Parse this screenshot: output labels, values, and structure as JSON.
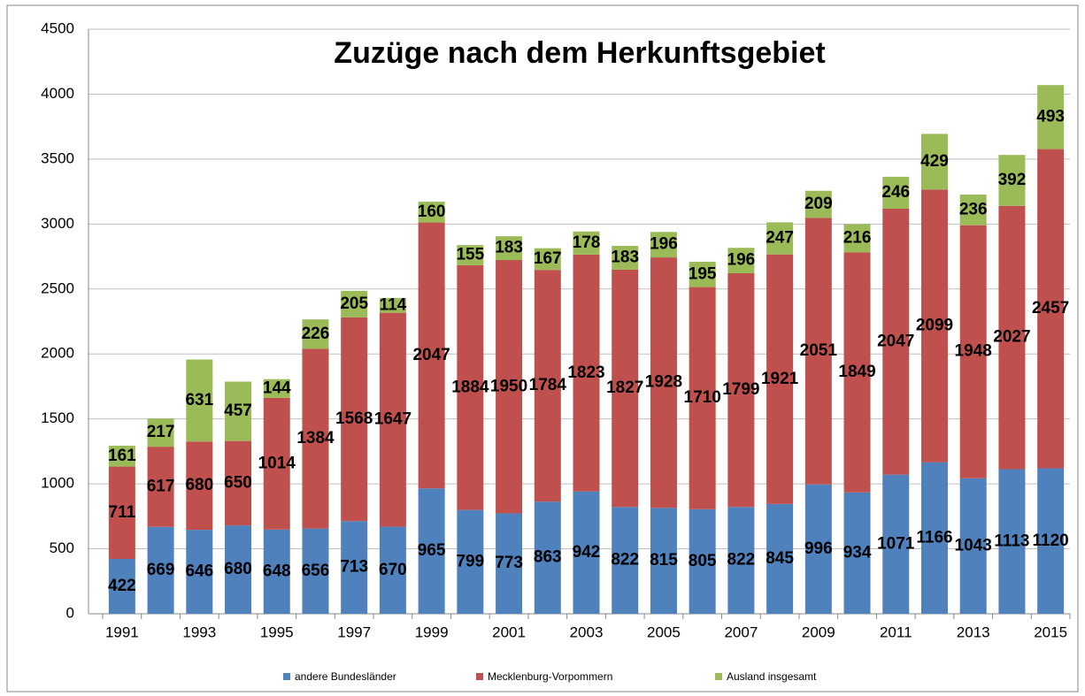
{
  "chart_data": {
    "type": "stacked-bar",
    "title": "Zuzüge nach dem Herkunftsgebiet",
    "categories": [
      "1991",
      null,
      "1993",
      null,
      "1995",
      null,
      "1997",
      null,
      "1999",
      null,
      "2001",
      null,
      "2003",
      null,
      "2005",
      null,
      "2007",
      null,
      "2009",
      null,
      "2011",
      null,
      "2013",
      null,
      "2015"
    ],
    "series": [
      {
        "name": "andere Bundesländer",
        "color": "#4f81bd",
        "values": [
          422,
          669,
          646,
          680,
          648,
          656,
          713,
          670,
          965,
          799,
          773,
          863,
          942,
          822,
          815,
          805,
          822,
          845,
          996,
          934,
          1071,
          1166,
          1043,
          1113,
          1120
        ]
      },
      {
        "name": "Mecklenburg-Vorpommern",
        "color": "#c0504d",
        "values": [
          711,
          617,
          680,
          650,
          1014,
          1384,
          1568,
          1647,
          2047,
          1884,
          1950,
          1784,
          1823,
          1827,
          1928,
          1710,
          1799,
          1921,
          2051,
          1849,
          2047,
          2099,
          1948,
          2027,
          2457
        ]
      },
      {
        "name": "Ausland insgesamt",
        "color": "#9bbb59",
        "values": [
          161,
          217,
          631,
          457,
          144,
          226,
          205,
          114,
          160,
          155,
          183,
          167,
          178,
          183,
          196,
          195,
          196,
          247,
          209,
          216,
          246,
          429,
          236,
          392,
          493
        ]
      }
    ],
    "ylim": [
      0,
      4500
    ],
    "yticks": [
      0,
      500,
      1000,
      1500,
      2000,
      2500,
      3000,
      3500,
      4000,
      4500
    ],
    "grid": true,
    "legend": "bottom"
  }
}
